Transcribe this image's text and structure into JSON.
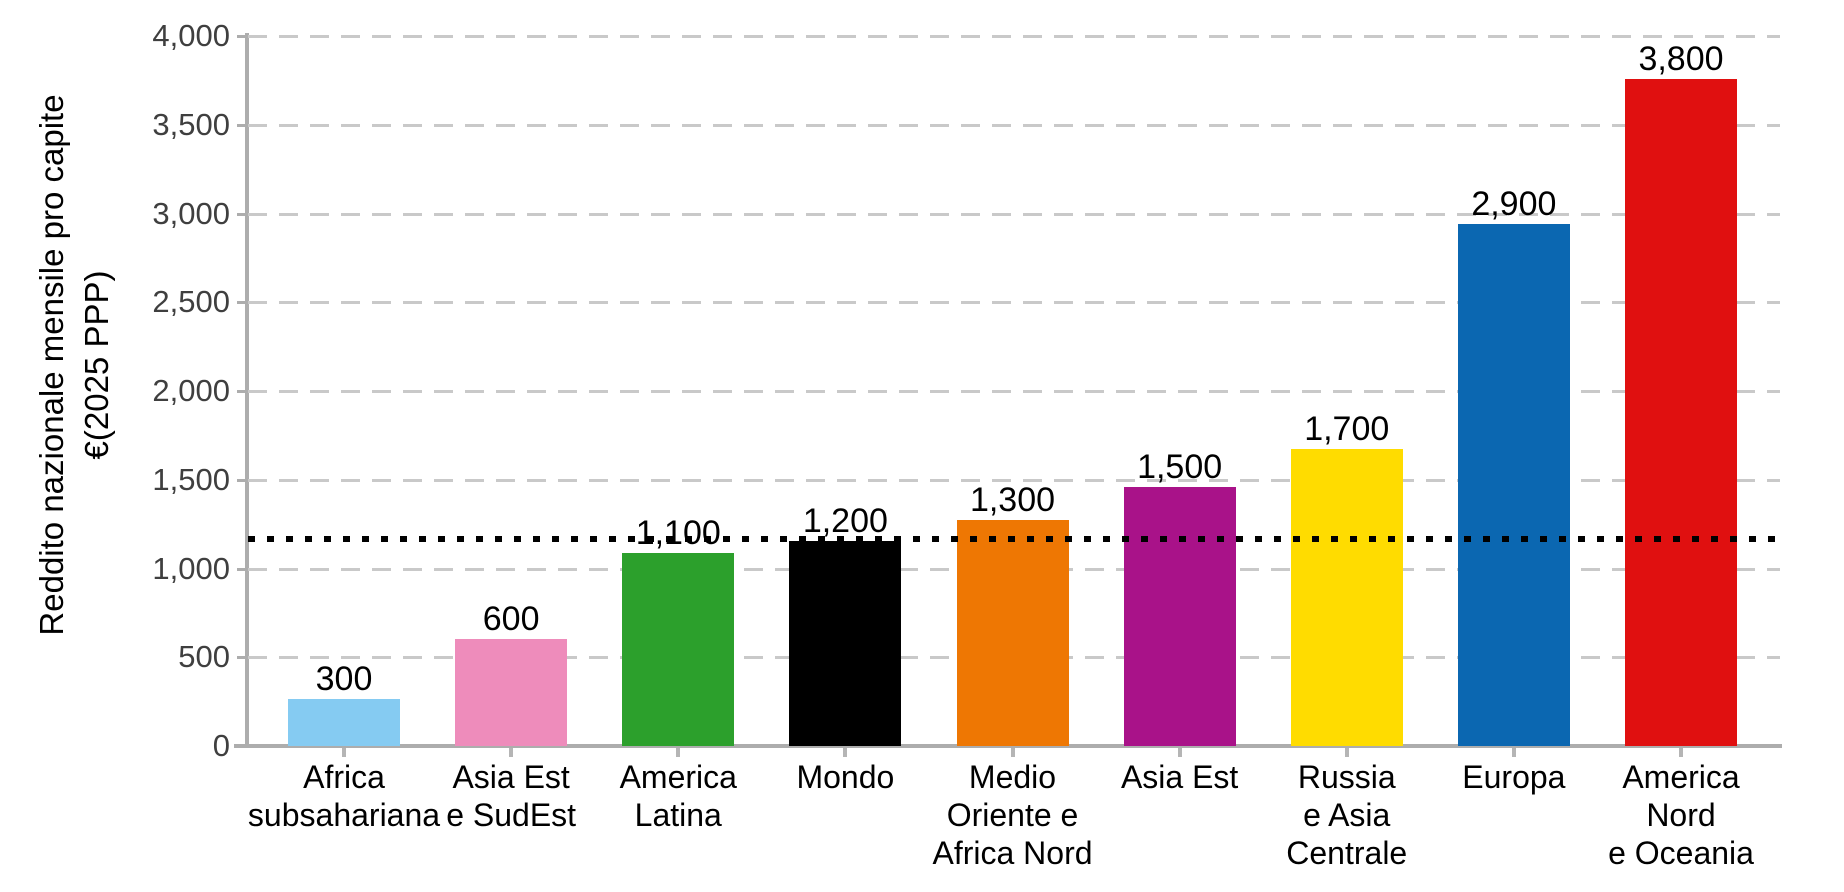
{
  "chart_data": {
    "type": "bar",
    "title": "",
    "xlabel": "",
    "ylabel": "Reddito nazionale mensile pro capite €(2025 PPP)",
    "ylabel_line1": "Reddito nazionale mensile pro capite",
    "ylabel_line2": "€(2025 PPP)",
    "ylim": [
      0,
      4000
    ],
    "yticks": [
      0,
      500,
      1000,
      1500,
      2000,
      2500,
      3000,
      3500,
      4000
    ],
    "ytick_labels": [
      "0",
      "500",
      "1,000",
      "1,500",
      "2,000",
      "2,500",
      "3,000",
      "3,500",
      "4,000"
    ],
    "grid": "horizontal dashed gridlines",
    "legend": "none",
    "categories": [
      "Africa subsahariana",
      "Asia Est e SudEst",
      "America Latina",
      "Mondo",
      "Medio Oriente e Africa Nord",
      "Asia Est",
      "Russia e Asia Centrale",
      "Europa",
      "America Nord e Oceania"
    ],
    "category_label_lines": [
      [
        "Africa",
        "subsahariana"
      ],
      [
        "Asia Est",
        "e SudEst"
      ],
      [
        "America",
        "Latina"
      ],
      [
        "Mondo"
      ],
      [
        "Medio",
        "Oriente e",
        "Africa Nord"
      ],
      [
        "Asia Est"
      ],
      [
        "Russia",
        "e Asia",
        "Centrale"
      ],
      [
        "Europa"
      ],
      [
        "America",
        "Nord",
        "e Oceania"
      ]
    ],
    "values": [
      300,
      600,
      1100,
      1200,
      1300,
      1500,
      1700,
      2900,
      3800
    ],
    "value_labels": [
      "300",
      "600",
      "1,100",
      "1,200",
      "1,300",
      "1,500",
      "1,700",
      "2,900",
      "3,800"
    ],
    "bar_drawn_values": [
      262,
      603,
      1087,
      1155,
      1273,
      1459,
      1673,
      2941,
      3756
    ],
    "bar_colors": [
      "#85CBF2",
      "#EE8CBB",
      "#2CA02C",
      "#000000",
      "#EE7703",
      "#A91289",
      "#FFDC00",
      "#0B67B1",
      "#E01010"
    ],
    "reference_line": {
      "value": 1165,
      "style": "dotted",
      "color": "#000000"
    },
    "axis_color": "#ADADAD",
    "gridline_color": "#C9C9C9",
    "tick_label_color": "#3F3F3F",
    "label_color": "#000000"
  }
}
